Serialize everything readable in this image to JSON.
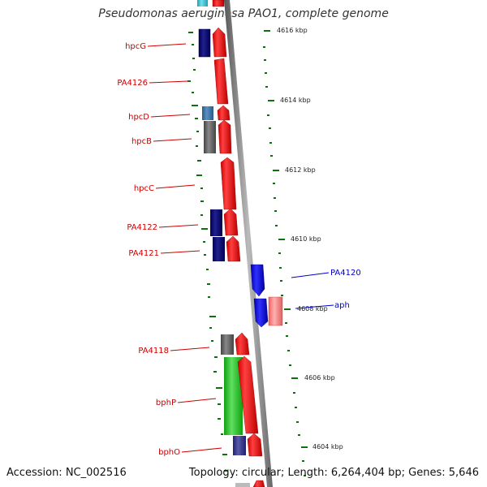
{
  "title": "Pseudomonas aeruginosa PAO1, complete genome",
  "accession": "Accession: NC_002516",
  "topology": "Topology: circular; Length: 6,264,404 bp; Genes: 5,646",
  "colors": {
    "forward_gene": "#ff0000",
    "forward_gene_light": "#ff8080",
    "reverse_gene": "#0000ff",
    "dark_navy": "#0a0a6e",
    "gc_green": "#00a000",
    "scale_tick": "#107010",
    "label_red": "#cc0000",
    "label_blue": "#0000cc"
  },
  "scale_labels": [
    "4616 kbp",
    "4614 kbp",
    "4612 kbp",
    "4610 kbp",
    "4608 kbp",
    "4606 kbp",
    "4604 kbp"
  ],
  "gene_labels": [
    {
      "name": "hpcG",
      "strand": "forward"
    },
    {
      "name": "PA4126",
      "strand": "forward"
    },
    {
      "name": "hpcD",
      "strand": "forward"
    },
    {
      "name": "hpcB",
      "strand": "forward"
    },
    {
      "name": "hpcC",
      "strand": "forward"
    },
    {
      "name": "PA4122",
      "strand": "forward"
    },
    {
      "name": "PA4121",
      "strand": "forward"
    },
    {
      "name": "PA4120",
      "strand": "reverse"
    },
    {
      "name": "aph",
      "strand": "reverse"
    },
    {
      "name": "PA4118",
      "strand": "forward"
    },
    {
      "name": "bphP",
      "strand": "forward"
    },
    {
      "name": "bphO",
      "strand": "forward"
    }
  ]
}
